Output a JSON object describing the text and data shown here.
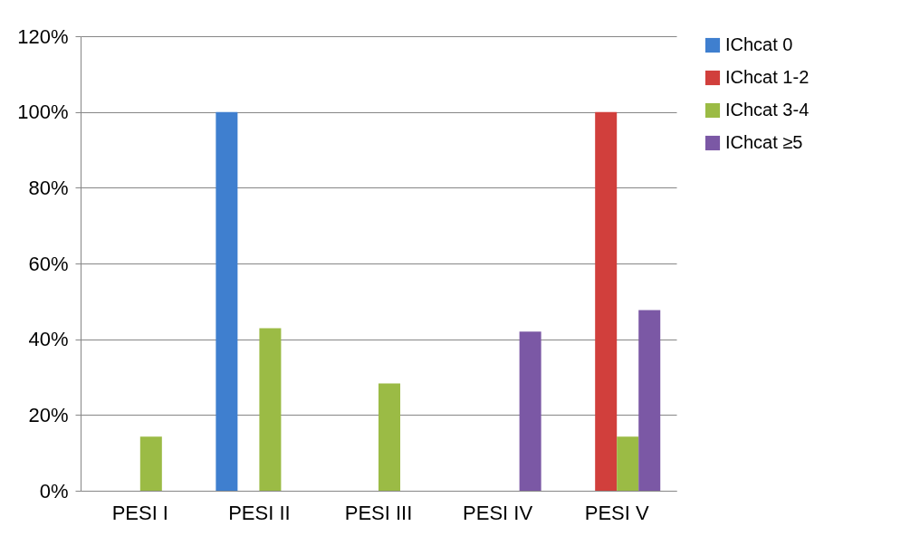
{
  "chart_data": {
    "type": "bar",
    "categories": [
      "PESI I",
      "PESI II",
      "PESI III",
      "PESI IV",
      "PESI V"
    ],
    "series": [
      {
        "name": "IChcat 0",
        "color": "#3f7fcf",
        "values": [
          null,
          100,
          null,
          null,
          null
        ]
      },
      {
        "name": "IChcat 1-2",
        "color": "#d13f3c",
        "values": [
          null,
          null,
          null,
          null,
          100
        ]
      },
      {
        "name": "IChcat 3-4",
        "color": "#9bbb45",
        "values": [
          14.3,
          42.9,
          28.3,
          null,
          14.3
        ]
      },
      {
        "name": "IChcat ≥5",
        "color": "#7b58a5",
        "values": [
          null,
          null,
          null,
          42,
          47.7
        ]
      }
    ],
    "ylim": [
      0,
      120
    ],
    "yticks": [
      {
        "value": 0,
        "label": "0%"
      },
      {
        "value": 20,
        "label": "20%"
      },
      {
        "value": 40,
        "label": "40%"
      },
      {
        "value": 60,
        "label": "60%"
      },
      {
        "value": 80,
        "label": "80%"
      },
      {
        "value": 100,
        "label": "100%"
      },
      {
        "value": 120,
        "label": "120%"
      }
    ],
    "grid": "y",
    "legend": "right"
  }
}
